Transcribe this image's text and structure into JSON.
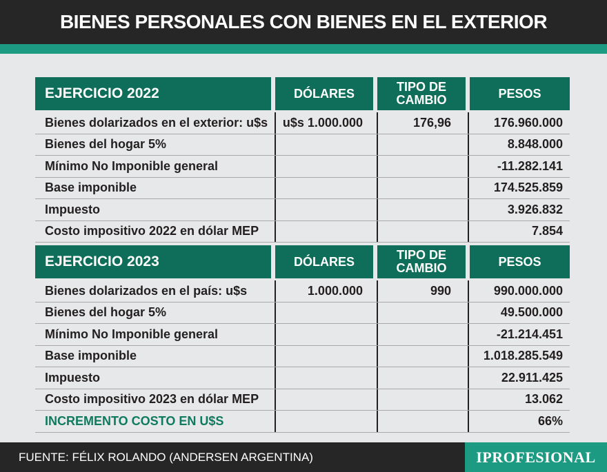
{
  "title": "BIENES PERSONALES CON BIENES EN EL EXTERIOR",
  "block_2022": {
    "header": [
      "EJERCICIO 2022",
      "DÓLARES",
      "TIPO DE CAMBIO",
      "PESOS"
    ],
    "rows": [
      [
        "Bienes dolarizados en el exterior: u$s",
        "u$s 1.000.000",
        "176,96",
        "176.960.000"
      ],
      [
        "Bienes del hogar 5%",
        "",
        "",
        "8.848.000"
      ],
      [
        "Mínimo No Imponible general",
        "",
        "",
        "-11.282.141"
      ],
      [
        "Base imponible",
        "",
        "",
        "174.525.859"
      ],
      [
        "Impuesto",
        "",
        "",
        "3.926.832"
      ],
      [
        "Costo impositivo 2022 en dólar MEP",
        "",
        "",
        "7.854"
      ]
    ]
  },
  "block_2023": {
    "header": [
      "EJERCICIO 2023",
      "DÓLARES",
      "TIPO DE CAMBIO",
      "PESOS"
    ],
    "rows": [
      [
        "Bienes dolarizados en el país: u$s",
        "1.000.000",
        "990",
        "990.000.000"
      ],
      [
        "Bienes del hogar 5%",
        "",
        "",
        "49.500.000"
      ],
      [
        "Mínimo No Imponible general",
        "",
        "",
        "-21.214.451"
      ],
      [
        "Base imponible",
        "",
        "",
        "1.018.285.549"
      ],
      [
        "Impuesto",
        "",
        "",
        "22.911.425"
      ],
      [
        "Costo impositivo 2023 en dólar MEP",
        "",
        "",
        "13.062"
      ],
      [
        "INCREMENTO COSTO EN U$S",
        "",
        "",
        "66%"
      ]
    ]
  },
  "footer": {
    "source": "FUENTE: FÉLIX ROLANDO (ANDERSEN ARGENTINA)",
    "logo": "IPROFESIONAL"
  },
  "colors": {
    "header_green": "#0e6e59",
    "accent_teal": "#1d9a82",
    "dark_bar": "#262626",
    "highlight_text": "#0e7a5f"
  }
}
